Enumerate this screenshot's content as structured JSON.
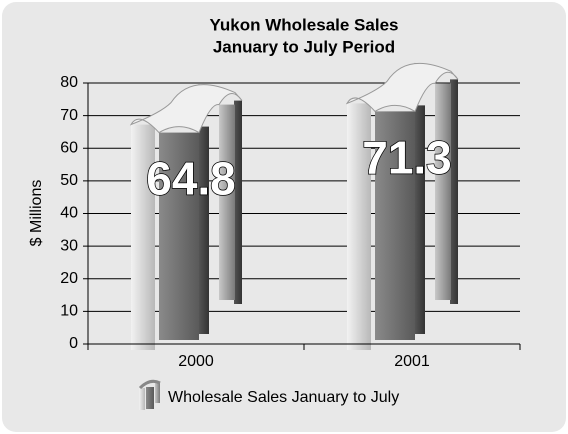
{
  "chart_data": {
    "type": "bar",
    "title": [
      "Yukon Wholesale Sales",
      "January to July Period"
    ],
    "y_label": "$ Millions",
    "categories": [
      "2000",
      "2001"
    ],
    "series": [
      {
        "name": "Wholesale Sales January to July",
        "color": "#7a7a7a",
        "values": [
          64.8,
          71.3
        ]
      }
    ],
    "ylim": [
      0,
      80
    ],
    "yticks": [
      0,
      10,
      20,
      30,
      40,
      50,
      60,
      70,
      80
    ],
    "grid": true
  }
}
